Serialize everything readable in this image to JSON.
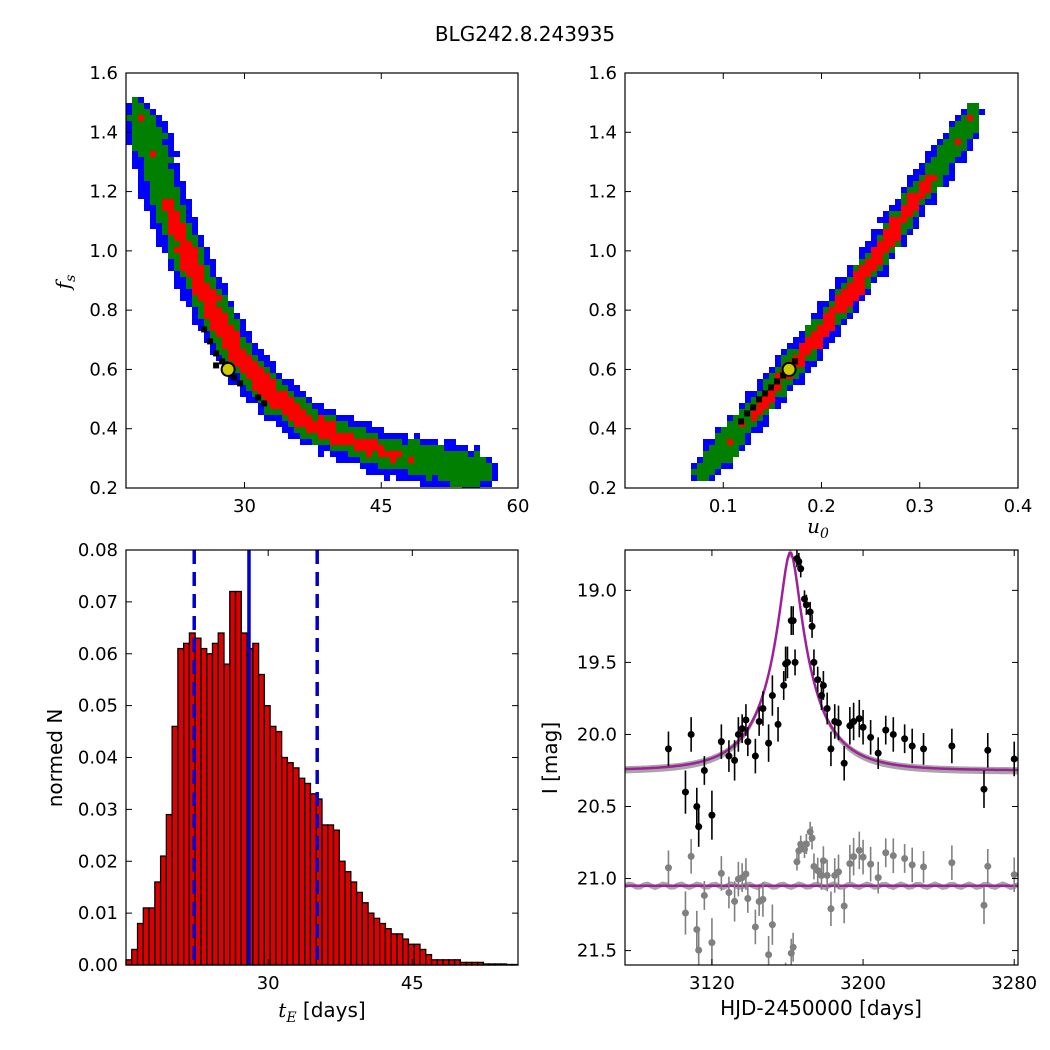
{
  "figure": {
    "title": "BLG242.8.243935"
  },
  "colors": {
    "level3": "#0000ff",
    "level2": "#007f00",
    "level1": "#ff0000",
    "best": "#000000",
    "marker_fill": "#cccc00",
    "hist_bar": "#dd0000",
    "hist_line": "#0000cc",
    "model": "#a0209a",
    "data_main": "#000000",
    "data_resid": "#808080"
  },
  "chart_data": [
    {
      "type": "heatmap",
      "name": "tE-fs",
      "xlabel": "",
      "ylabel": "f_s",
      "ylabel_base": "f",
      "ylabel_sub": "s",
      "xlim": [
        17,
        60
      ],
      "ylim": [
        0.2,
        1.6
      ],
      "xticks": [
        "30",
        "45",
        "60"
      ],
      "xtick_values": [
        30,
        45,
        60
      ],
      "yticks": [
        "0.2",
        "0.4",
        "0.6",
        "0.8",
        "1.0",
        "1.2",
        "1.4",
        "1.6"
      ],
      "ytick_values": [
        0.2,
        0.4,
        0.6,
        0.8,
        1.0,
        1.2,
        1.4,
        1.6
      ],
      "ridge": [
        [
          18.2,
          1.48
        ],
        [
          19.5,
          1.38
        ],
        [
          20.7,
          1.25
        ],
        [
          22,
          1.12
        ],
        [
          23.5,
          1.0
        ],
        [
          25,
          0.9
        ],
        [
          27,
          0.77
        ],
        [
          29.5,
          0.64
        ],
        [
          32.5,
          0.53
        ],
        [
          36,
          0.44
        ],
        [
          40,
          0.38
        ],
        [
          45,
          0.32
        ],
        [
          50,
          0.29
        ],
        [
          55,
          0.26
        ],
        [
          56.5,
          0.25
        ]
      ],
      "best_fit": [
        28.2,
        0.6
      ]
    },
    {
      "type": "heatmap",
      "name": "u0-fs",
      "xlabel": "u_0",
      "xlabel_base": "u",
      "xlabel_sub": "0",
      "ylabel": "",
      "xlim": [
        0.0,
        0.4
      ],
      "ylim": [
        0.2,
        1.6
      ],
      "xticks": [
        "0.1",
        "0.2",
        "0.3",
        "0.4"
      ],
      "xtick_values": [
        0.1,
        0.2,
        0.3,
        0.4
      ],
      "yticks": [
        "0.2",
        "0.4",
        "0.6",
        "0.8",
        "1.0",
        "1.2",
        "1.4",
        "1.6"
      ],
      "ytick_values": [
        0.2,
        0.4,
        0.6,
        0.8,
        1.0,
        1.2,
        1.4,
        1.6
      ],
      "ridge": [
        [
          0.078,
          0.25
        ],
        [
          0.1,
          0.33
        ],
        [
          0.13,
          0.45
        ],
        [
          0.16,
          0.57
        ],
        [
          0.19,
          0.69
        ],
        [
          0.22,
          0.82
        ],
        [
          0.25,
          0.95
        ],
        [
          0.28,
          1.1
        ],
        [
          0.31,
          1.24
        ],
        [
          0.34,
          1.38
        ],
        [
          0.355,
          1.47
        ]
      ],
      "best_fit": [
        0.167,
        0.6
      ]
    },
    {
      "type": "bar",
      "name": "tE-histogram",
      "xlabel": "t_E [days]",
      "xlabel_base": "t",
      "xlabel_sub": "E",
      "xlabel_rest": " [days]",
      "ylabel": "normed N",
      "xlim": [
        15.2,
        56
      ],
      "ylim": [
        0.0,
        0.08
      ],
      "xticks": [
        "30",
        "45"
      ],
      "xtick_values": [
        30,
        45
      ],
      "yticks": [
        "0.00",
        "0.01",
        "0.02",
        "0.03",
        "0.04",
        "0.05",
        "0.06",
        "0.07",
        "0.08"
      ],
      "ytick_values": [
        0.0,
        0.01,
        0.02,
        0.03,
        0.04,
        0.05,
        0.06,
        0.07,
        0.08
      ],
      "bin_start": 15.2,
      "bin_width": 0.6,
      "values": [
        0.001,
        0.003,
        0.008,
        0.011,
        0.011,
        0.016,
        0.021,
        0.029,
        0.046,
        0.061,
        0.062,
        0.064,
        0.063,
        0.061,
        0.06,
        0.062,
        0.064,
        0.058,
        0.072,
        0.072,
        0.064,
        0.061,
        0.062,
        0.056,
        0.05,
        0.046,
        0.045,
        0.04,
        0.039,
        0.038,
        0.036,
        0.035,
        0.033,
        0.032,
        0.027,
        0.027,
        0.026,
        0.02,
        0.018,
        0.016,
        0.014,
        0.012,
        0.01,
        0.009,
        0.008,
        0.007,
        0.006,
        0.006,
        0.005,
        0.004,
        0.004,
        0.003,
        0.002,
        0.001,
        0.001,
        0.001,
        0.001,
        0.001,
        0.0005,
        0.0005,
        0.0005,
        0.0005,
        0.0002,
        0.0002,
        0.0002,
        0.0002,
        0.0001,
        0.0001
      ],
      "vlines": {
        "median": 28.0,
        "lower": 22.3,
        "upper": 35.1
      }
    },
    {
      "type": "scatter",
      "name": "light-curve",
      "xlabel": "HJD-2450000 [days]",
      "ylabel": "I [mag]",
      "xlim": [
        3074,
        3282
      ],
      "ylim": [
        21.6,
        18.72
      ],
      "xticks": [
        "3120",
        "3200",
        "3280"
      ],
      "xtick_values": [
        3120,
        3200,
        3280
      ],
      "yticks": [
        "19.0",
        "19.5",
        "20.0",
        "20.5",
        "21.0",
        "21.5"
      ],
      "ytick_values": [
        19.0,
        19.5,
        20.0,
        20.5,
        21.0,
        21.5
      ],
      "model": {
        "t0": 3161.5,
        "tE": 28.0,
        "u0": 0.167,
        "fs": 0.6,
        "Ibase": 20.25,
        "Iresid": 21.05
      },
      "points": [
        [
          3097,
          20.1,
          0.12
        ],
        [
          3106,
          20.4,
          0.15
        ],
        [
          3109,
          20.0,
          0.12
        ],
        [
          3112,
          20.5,
          0.13
        ],
        [
          3113,
          20.64,
          0.14
        ],
        [
          3116,
          20.25,
          0.1
        ],
        [
          3120,
          20.56,
          0.17
        ],
        [
          3125,
          20.05,
          0.12
        ],
        [
          3129,
          20.15,
          0.11
        ],
        [
          3132,
          20.18,
          0.14
        ],
        [
          3134,
          20.0,
          0.12
        ],
        [
          3136,
          19.96,
          0.1
        ],
        [
          3138,
          19.9,
          0.11
        ],
        [
          3139,
          20.05,
          0.1
        ],
        [
          3143,
          20.15,
          0.12
        ],
        [
          3145,
          19.91,
          0.1
        ],
        [
          3147,
          19.82,
          0.12
        ],
        [
          3150,
          20.06,
          0.13
        ],
        [
          3152,
          19.73,
          0.14
        ],
        [
          3155,
          19.93,
          0.12
        ],
        [
          3158,
          19.66,
          0.1
        ],
        [
          3159,
          19.51,
          0.12
        ],
        [
          3160,
          19.5,
          0.11
        ],
        [
          3162,
          19.21,
          0.1
        ],
        [
          3163,
          19.21,
          0.1
        ],
        [
          3164,
          19.5,
          0.09
        ],
        [
          3165,
          18.78,
          0.06
        ],
        [
          3166,
          18.8,
          0.06
        ],
        [
          3167,
          18.85,
          0.06
        ],
        [
          3169,
          19.06,
          0.06
        ],
        [
          3170,
          19.1,
          0.07
        ],
        [
          3172,
          19.15,
          0.07
        ],
        [
          3173,
          19.25,
          0.08
        ],
        [
          3174,
          19.5,
          0.09
        ],
        [
          3176,
          19.62,
          0.09
        ],
        [
          3178,
          19.73,
          0.1
        ],
        [
          3179,
          19.66,
          0.1
        ],
        [
          3181,
          19.82,
          0.11
        ],
        [
          3183,
          20.1,
          0.12
        ],
        [
          3185,
          19.91,
          0.12
        ],
        [
          3187,
          19.92,
          0.12
        ],
        [
          3190,
          20.2,
          0.12
        ],
        [
          3193,
          19.94,
          0.13
        ],
        [
          3195,
          19.91,
          0.13
        ],
        [
          3198,
          19.89,
          0.13
        ],
        [
          3200,
          19.95,
          0.12
        ],
        [
          3204,
          20.02,
          0.12
        ],
        [
          3208,
          20.13,
          0.11
        ],
        [
          3212,
          19.97,
          0.1
        ],
        [
          3216,
          20.0,
          0.12
        ],
        [
          3222,
          20.03,
          0.1
        ],
        [
          3226,
          20.08,
          0.12
        ],
        [
          3232,
          20.1,
          0.11
        ],
        [
          3247,
          20.08,
          0.12
        ],
        [
          3264,
          20.38,
          0.13
        ],
        [
          3266,
          20.11,
          0.12
        ],
        [
          3280,
          20.17,
          0.12
        ]
      ],
      "resid_offset": 0.8
    }
  ]
}
